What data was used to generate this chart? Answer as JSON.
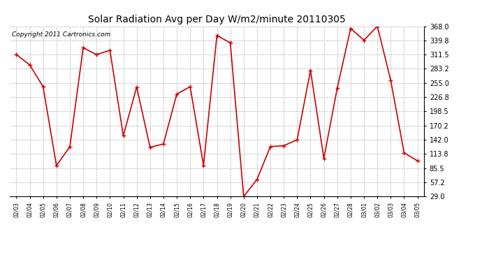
{
  "title": "Solar Radiation Avg per Day W/m2/minute 20110305",
  "copyright": "Copyright 2011 Cartronics.com",
  "dates": [
    "02/03",
    "02/04",
    "02/05",
    "02/06",
    "02/07",
    "02/08",
    "02/09",
    "02/10",
    "02/11",
    "02/12",
    "02/13",
    "02/14",
    "02/15",
    "02/16",
    "02/17",
    "02/18",
    "02/19",
    "02/20",
    "02/21",
    "02/22",
    "02/23",
    "02/24",
    "02/25",
    "02/26",
    "02/27",
    "02/28",
    "03/01",
    "03/02",
    "03/03",
    "03/04",
    "03/05"
  ],
  "values": [
    311.5,
    291.0,
    247.5,
    90.5,
    128.0,
    325.0,
    311.5,
    320.0,
    150.0,
    247.0,
    127.0,
    133.5,
    233.0,
    247.5,
    91.0,
    349.5,
    335.0,
    29.0,
    63.0,
    128.5,
    130.0,
    142.0,
    280.0,
    105.0,
    245.0,
    363.5,
    340.0,
    368.0,
    260.0,
    116.0,
    100.0
  ],
  "line_color": "#cc0000",
  "marker": "+",
  "marker_size": 4,
  "background_color": "#ffffff",
  "grid_color": "#b0b0b0",
  "ylim": [
    29.0,
    368.0
  ],
  "yticks": [
    29.0,
    57.2,
    85.5,
    113.8,
    142.0,
    170.2,
    198.5,
    226.8,
    255.0,
    283.2,
    311.5,
    339.8,
    368.0
  ],
  "title_fontsize": 10,
  "copyright_fontsize": 6.5,
  "xtick_fontsize": 5.5,
  "ytick_fontsize": 7
}
